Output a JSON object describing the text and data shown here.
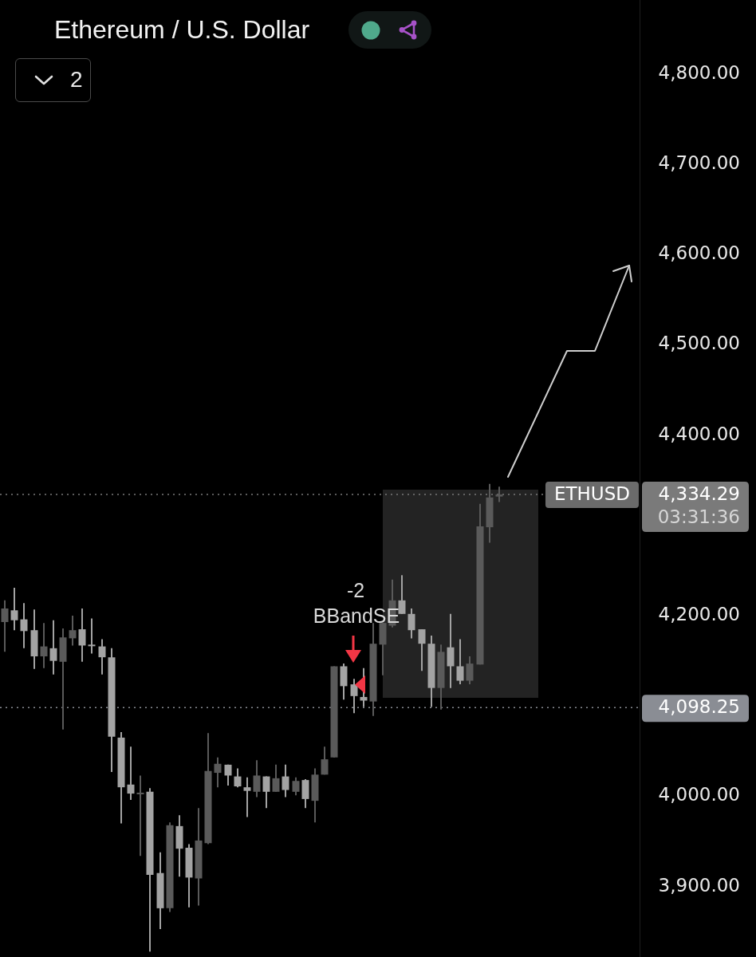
{
  "chart_data": {
    "type": "candlestick",
    "title": "Ethereum / U.S. Dollar",
    "categories": [
      null,
      null,
      null,
      null,
      null,
      null,
      null,
      null,
      null,
      null,
      null,
      null,
      null,
      null,
      null,
      null,
      null,
      null,
      null,
      null,
      null,
      null,
      null,
      null,
      null,
      null,
      null,
      null,
      null,
      null,
      null,
      null,
      null,
      null,
      null,
      null,
      null,
      null,
      null,
      null,
      null,
      null,
      null,
      null,
      null,
      null,
      null,
      null,
      null,
      null,
      null,
      null,
      null,
      null,
      null,
      null,
      null,
      null,
      null,
      null,
      null,
      null,
      null,
      null,
      null,
      null
    ],
    "ohlc": [
      [
        4193,
        4217,
        4160,
        4208
      ],
      [
        4206,
        4231,
        4184,
        4195
      ],
      [
        4196,
        4214,
        4164,
        4183
      ],
      [
        4184,
        4207,
        4141,
        4155
      ],
      [
        4155,
        4192,
        4142,
        4166
      ],
      [
        4164,
        4195,
        4135,
        4150
      ],
      [
        4149,
        4186,
        4074,
        4176
      ],
      [
        4175,
        4200,
        4167,
        4184
      ],
      [
        4185,
        4208,
        4149,
        4167
      ],
      [
        4168,
        4197,
        4158,
        4167
      ],
      [
        4166,
        4174,
        4135,
        4154
      ],
      [
        4154,
        4164,
        4027,
        4066
      ],
      [
        4065,
        4071,
        3970,
        4010
      ],
      [
        4013,
        4055,
        3996,
        4003
      ],
      [
        4003,
        4023,
        3934,
        4004
      ],
      [
        4005,
        4009,
        3828,
        3913
      ],
      [
        3915,
        3938,
        3853,
        3876
      ],
      [
        3876,
        3971,
        3872,
        3968
      ],
      [
        3967,
        3979,
        3911,
        3942
      ],
      [
        3943,
        3947,
        3877,
        3910
      ],
      [
        3909,
        3987,
        3879,
        3951
      ],
      [
        3948,
        4070,
        3947,
        4028
      ],
      [
        4026,
        4043,
        4010,
        4036
      ],
      [
        4035,
        4035,
        4012,
        4023
      ],
      [
        4022,
        4031,
        4010,
        4011
      ],
      [
        4010,
        4021,
        3977,
        4006
      ],
      [
        4005,
        4040,
        3999,
        4023
      ],
      [
        4022,
        4022,
        3987,
        4005
      ],
      [
        4005,
        4035,
        4005,
        4020
      ],
      [
        4022,
        4035,
        3999,
        4007
      ],
      [
        4005,
        4021,
        4001,
        4017
      ],
      [
        4018,
        4019,
        3987,
        3997
      ],
      [
        3995,
        4031,
        3971,
        4024
      ],
      [
        4024,
        4055,
        4024,
        4041
      ],
      [
        4043,
        4144,
        4043,
        4144
      ],
      [
        4144,
        4147,
        4107,
        4122
      ],
      [
        4124,
        4130,
        4092,
        4111
      ],
      [
        4110,
        4142,
        4099,
        4106
      ],
      [
        4105,
        4192,
        4089,
        4169
      ],
      [
        4168,
        4192,
        4134,
        4192
      ],
      [
        4189,
        4240,
        4187,
        4217
      ],
      [
        4217,
        4245,
        4202,
        4202
      ],
      [
        4202,
        4208,
        4175,
        4184
      ],
      [
        4185,
        4185,
        4139,
        4169
      ],
      [
        4169,
        4178,
        4099,
        4120
      ],
      [
        4120,
        4168,
        4096,
        4160
      ],
      [
        4165,
        4202,
        4120,
        4144
      ],
      [
        4144,
        4174,
        4124,
        4128
      ],
      [
        4128,
        4155,
        4124,
        4147
      ],
      [
        4146,
        4324,
        4146,
        4299
      ],
      [
        4298,
        4346,
        4281,
        4331
      ],
      [
        4332,
        4343,
        4326,
        4334.29
      ],
      null,
      null,
      null,
      null,
      null,
      null,
      null,
      null,
      null,
      null,
      null,
      null,
      null,
      null
    ],
    "colors": [
      "#5a5a5a",
      "#a3a3a3",
      "#a3a3a3",
      "#a3a3a3",
      "#5a5a5a",
      "#a3a3a3",
      "#5a5a5a",
      "#5a5a5a",
      "#a3a3a3",
      "#a3a3a3",
      "#a3a3a3",
      "#a3a3a3",
      "#a3a3a3",
      "#a3a3a3",
      "#5a5a5a",
      "#a3a3a3",
      "#a3a3a3",
      "#5a5a5a",
      "#a3a3a3",
      "#a3a3a3",
      "#5a5a5a",
      "#5a5a5a",
      "#5a5a5a",
      "#a3a3a3",
      "#a3a3a3",
      "#a3a3a3",
      "#5a5a5a",
      "#a3a3a3",
      "#5a5a5a",
      "#a3a3a3",
      "#5a5a5a",
      "#a3a3a3",
      "#5a5a5a",
      "#5a5a5a",
      "#5a5a5a",
      "#a3a3a3",
      "#a3a3a3",
      "#a3a3a3",
      "#5a5a5a",
      "#5a5a5a",
      "#5a5a5a",
      "#a3a3a3",
      "#a3a3a3",
      "#a3a3a3",
      "#a3a3a3",
      "#5a5a5a",
      "#a3a3a3",
      "#a3a3a3",
      "#5a5a5a",
      "#5a5a5a",
      "#5a5a5a",
      "#5a5a5a",
      null,
      null,
      null,
      null,
      null,
      null,
      null,
      null,
      null,
      null,
      null,
      null,
      null,
      null
    ],
    "ylim": [
      3822,
      4882
    ],
    "yticks": [
      {
        "value": 3900,
        "label": "3,900.00"
      },
      {
        "value": 4000,
        "label": "4,000.00"
      },
      {
        "value": 4200,
        "label": "4,200.00"
      },
      {
        "value": 4400,
        "label": "4,400.00"
      },
      {
        "value": 4500,
        "label": "4,500.00"
      },
      {
        "value": 4600,
        "label": "4,600.00"
      },
      {
        "value": 4700,
        "label": "4,700.00"
      },
      {
        "value": 4800,
        "label": "4,800.00"
      }
    ],
    "tick_labels": "y",
    "ref_lines": [
      {
        "axis": "y",
        "value": 4334.29,
        "label": "4,334.29",
        "color": "#7a7a7a",
        "line_style": "dotted"
      },
      {
        "axis": "y",
        "value": 4098.25,
        "label": "4,098.25",
        "color": "#8a8d94",
        "line_style": "dotted"
      }
    ],
    "annotations": [
      "2",
      "-2",
      "BBandSE",
      {
        "text": "ETHUSD",
        "y": 4334.29
      },
      "03:31:36"
    ]
  }
}
